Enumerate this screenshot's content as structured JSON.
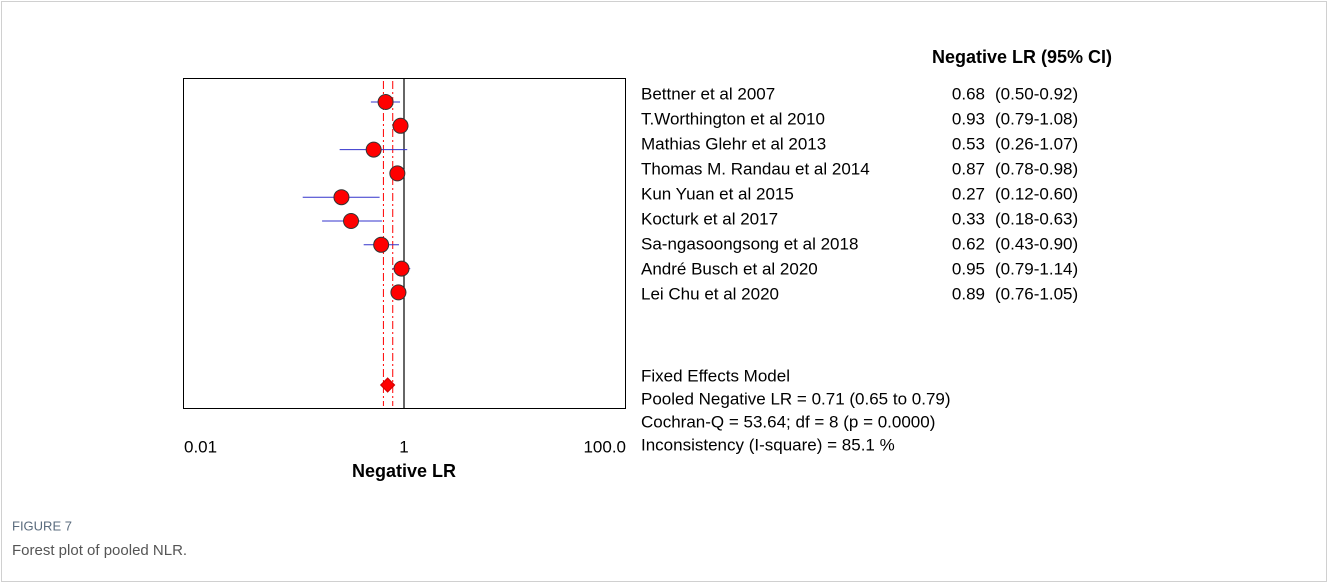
{
  "chart_data": {
    "type": "forest",
    "column_header": "Negative LR (95% CI)",
    "xlabel": "Negative LR",
    "log_x": true,
    "xlim": [
      0.01,
      100
    ],
    "xticks": [
      0.01,
      1,
      {
        "value": 100,
        "label": "100.0"
      }
    ],
    "categories": [
      "Bettner et al 2007",
      "T.Worthington et al 2010",
      "Mathias Glehr et al 2013",
      "Thomas M. Randau et al 2014",
      "Kun Yuan et al 2015",
      "Kocturk et al 2017",
      "Sa-ngasoongsong et al 2018",
      "André Busch et al 2020",
      "Lei Chu et al 2020"
    ],
    "values": [
      0.68,
      0.93,
      0.53,
      0.87,
      0.27,
      0.33,
      0.62,
      0.95,
      0.89
    ],
    "lows": [
      0.5,
      0.79,
      0.26,
      0.78,
      0.12,
      0.18,
      0.43,
      0.79,
      0.76
    ],
    "highs": [
      0.92,
      1.08,
      1.07,
      0.98,
      0.6,
      0.63,
      0.9,
      1.14,
      1.05
    ],
    "ci_labels": [
      "(0.50-0.92)",
      "(0.79-1.08)",
      "(0.26-1.07)",
      "(0.78-0.98)",
      "(0.12-0.60)",
      "(0.18-0.63)",
      "(0.43-0.90)",
      "(0.79-1.14)",
      "(0.76-1.05)"
    ],
    "marker_color": "#ff0000",
    "ci_color": "#3333cc",
    "pooled": {
      "value": 0.71,
      "low": 0.65,
      "high": 0.79
    },
    "summary": [
      "Fixed Effects Model",
      "Pooled Negative LR = 0.71 (0.65 to 0.79)",
      "Cochran-Q = 53.64; df =  8 (p = 0.0000)",
      "Inconsistency (I-square) = 85.1 %"
    ]
  },
  "caption": {
    "label": "FIGURE 7",
    "text": "Forest plot of pooled NLR."
  }
}
